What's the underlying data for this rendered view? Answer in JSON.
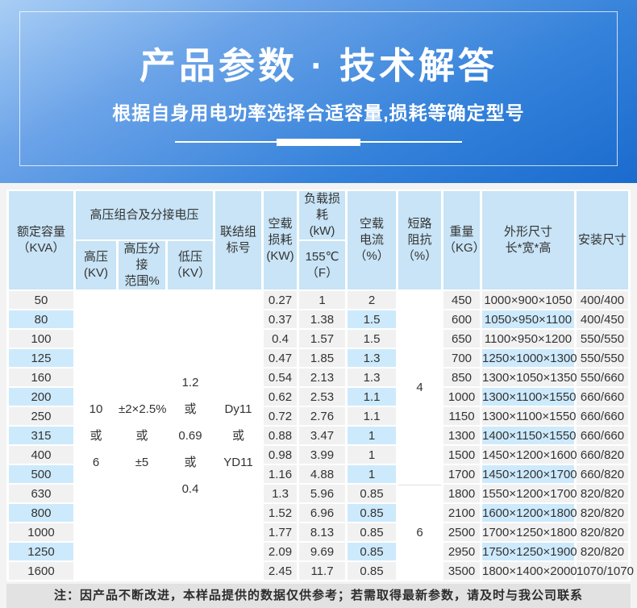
{
  "banner": {
    "title": "产品参数 · 技术解答",
    "subtitle": "根据自身用电功率选择合适容量,损耗等确定型号"
  },
  "colors": {
    "banner_gradient_top": "#a9cef5",
    "banner_gradient_bottom": "#1a6bce",
    "header_cell_blue": "#c8e4f6",
    "stripe_blue": "#cdeafc",
    "stripe_gray": "#f1f1f1",
    "note_background": "#e2e2e2"
  },
  "table": {
    "headers": {
      "capacity": "额定容量\n（KVA）",
      "hv_group": "高压组合及分接电压",
      "hv": "高压\n(KV)",
      "hv_tap": "高压分接\n范围%",
      "lv": "低压\n（KV）",
      "vector_group": "联结组\n标号",
      "no_load_loss": "空载\n损耗\n(KW)",
      "load_loss": "负载损耗\n(kW)",
      "load_loss_sub": "155℃\n（F）",
      "no_load_current": "空载\n电流\n（%）",
      "impedance": "短路\n阻抗\n（%）",
      "weight": "重量\n（KG）",
      "dimensions": "外形尺寸\n长*宽*高",
      "install": "安装尺寸"
    },
    "merged_columns": {
      "hv": "10\n或\n6",
      "hv_tap": "±2×2.5%\n或\n±5",
      "lv": "1.2\n或\n0.69\n或\n0.4",
      "vector_group": "Dy11\n或\nYD11"
    },
    "impedance_groups": [
      {
        "value": "4",
        "span": 10
      },
      {
        "value": "6",
        "span": 5
      }
    ],
    "rows": [
      {
        "kva": "50",
        "noload": "0.27",
        "load": "1",
        "current": "2",
        "weight": "450",
        "dims": "1000×900×1050",
        "install": "400/400"
      },
      {
        "kva": "80",
        "noload": "0.37",
        "load": "1.38",
        "current": "1.5",
        "weight": "600",
        "dims": "1050×950×1100",
        "install": "400/450"
      },
      {
        "kva": "100",
        "noload": "0.4",
        "load": "1.57",
        "current": "1.5",
        "weight": "650",
        "dims": "1100×950×1200",
        "install": "550/550"
      },
      {
        "kva": "125",
        "noload": "0.47",
        "load": "1.85",
        "current": "1.3",
        "weight": "700",
        "dims": "1250×1000×1300",
        "install": "550/550"
      },
      {
        "kva": "160",
        "noload": "0.54",
        "load": "2.13",
        "current": "1.3",
        "weight": "850",
        "dims": "1300×1050×1350",
        "install": "550/660"
      },
      {
        "kva": "200",
        "noload": "0.62",
        "load": "2.53",
        "current": "1.1",
        "weight": "1000",
        "dims": "1300×1100×1550",
        "install": "660/660"
      },
      {
        "kva": "250",
        "noload": "0.72",
        "load": "2.76",
        "current": "1.1",
        "weight": "1150",
        "dims": "1300×1100×1550",
        "install": "660/660"
      },
      {
        "kva": "315",
        "noload": "0.88",
        "load": "3.47",
        "current": "1",
        "weight": "1300",
        "dims": "1400×1150×1550",
        "install": "660/660"
      },
      {
        "kva": "400",
        "noload": "0.98",
        "load": "3.99",
        "current": "1",
        "weight": "1500",
        "dims": "1450×1200×1600",
        "install": "660/820"
      },
      {
        "kva": "500",
        "noload": "1.16",
        "load": "4.88",
        "current": "1",
        "weight": "1700",
        "dims": "1450×1200×1700",
        "install": "660/820"
      },
      {
        "kva": "630",
        "noload": "1.3",
        "load": "5.96",
        "current": "0.85",
        "weight": "1800",
        "dims": "1550×1200×1700",
        "install": "820/820"
      },
      {
        "kva": "800",
        "noload": "1.52",
        "load": "6.96",
        "current": "0.85",
        "weight": "2100",
        "dims": "1600×1200×1800",
        "install": "820/820"
      },
      {
        "kva": "1000",
        "noload": "1.77",
        "load": "8.13",
        "current": "0.85",
        "weight": "2500",
        "dims": "1700×1250×1800",
        "install": "820/820"
      },
      {
        "kva": "1250",
        "noload": "2.09",
        "load": "9.69",
        "current": "0.85",
        "weight": "2950",
        "dims": "1750×1250×1900",
        "install": "820/820"
      },
      {
        "kva": "1600",
        "noload": "2.45",
        "load": "11.7",
        "current": "0.85",
        "weight": "3500",
        "dims": "1800×1400×2000",
        "install": "1070/1070"
      }
    ]
  },
  "note": "注：因产品不断改进，本样品提供的数据仅供参考；若需取得最新参数，请及时与我公司联系"
}
